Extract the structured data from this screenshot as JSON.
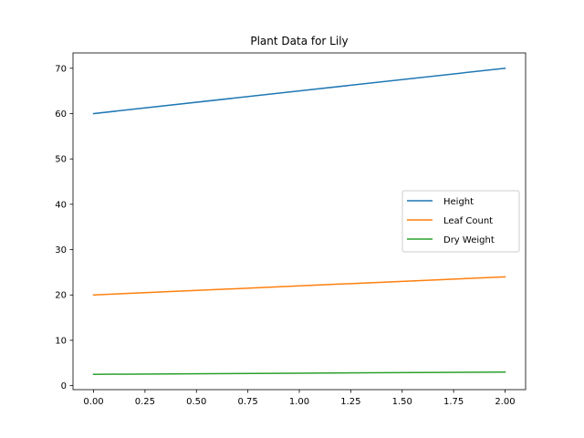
{
  "chart_data": {
    "type": "line",
    "title": "Plant Data for Lily",
    "xlabel": "",
    "ylabel": "",
    "x": [
      0,
      1,
      2
    ],
    "xlim": [
      -0.1,
      2.1
    ],
    "ylim": [
      -0.88,
      73.38
    ],
    "xticks": [
      0.0,
      0.25,
      0.5,
      0.75,
      1.0,
      1.25,
      1.5,
      1.75,
      2.0
    ],
    "xtick_labels": [
      "0.00",
      "0.25",
      "0.50",
      "0.75",
      "1.00",
      "1.25",
      "1.50",
      "1.75",
      "2.00"
    ],
    "yticks": [
      0,
      10,
      20,
      30,
      40,
      50,
      60,
      70
    ],
    "ytick_labels": [
      "0",
      "10",
      "20",
      "30",
      "40",
      "50",
      "60",
      "70"
    ],
    "grid": false,
    "legend_position": "center-right",
    "series": [
      {
        "name": "Height",
        "color": "#1f77b4",
        "values": [
          60,
          65,
          70
        ]
      },
      {
        "name": "Leaf Count",
        "color": "#ff7f0e",
        "values": [
          20,
          22,
          24
        ]
      },
      {
        "name": "Dry Weight",
        "color": "#2ca02c",
        "values": [
          2.5,
          2.75,
          3.0
        ]
      }
    ]
  }
}
